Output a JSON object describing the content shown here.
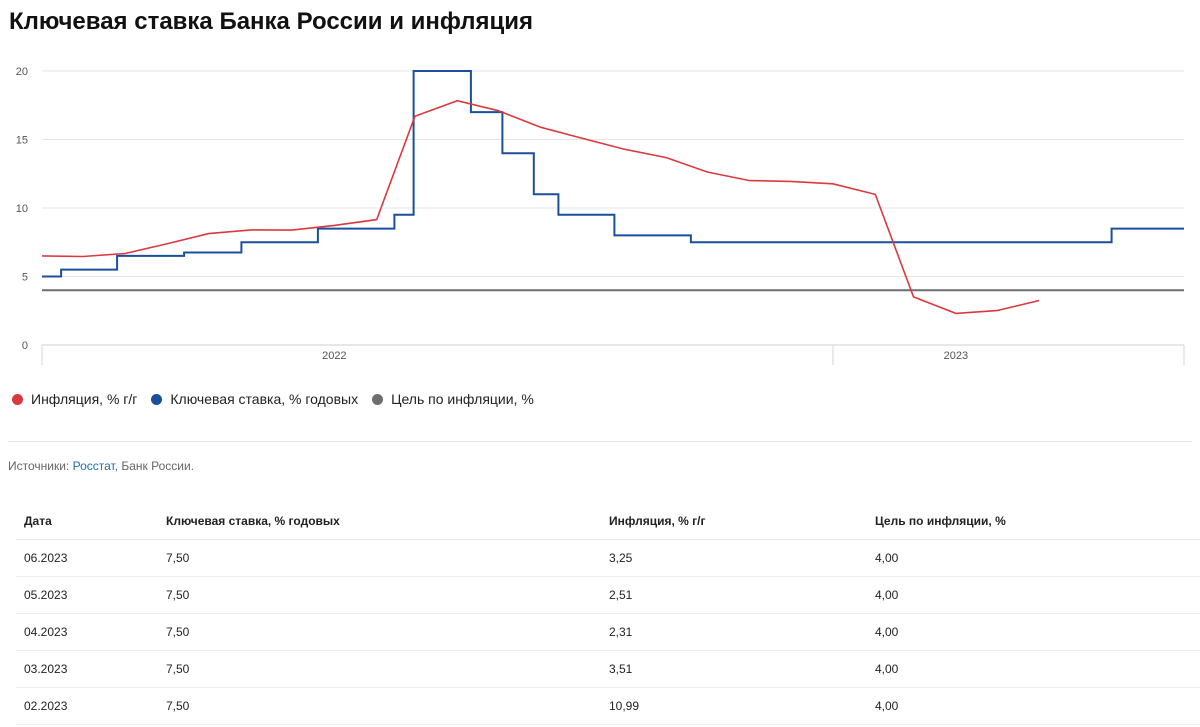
{
  "title": "Ключевая ставка Банка России и инфляция",
  "chart_data": {
    "type": "line",
    "x_ticks": [
      "2022",
      "2023"
    ],
    "ylim": [
      0,
      20
    ],
    "y_ticks": [
      0,
      5,
      10,
      15,
      20
    ],
    "grid": true,
    "legend_position": "bottom-left",
    "series": [
      {
        "name": "Инфляция, % г/г",
        "color": "#d93a3f",
        "kind": "line",
        "x": [
          "2021-06",
          "2021-07",
          "2021-08",
          "2021-09",
          "2021-10",
          "2021-11",
          "2021-12",
          "2022-01",
          "2022-02",
          "2022-03",
          "2022-04",
          "2022-05",
          "2022-06",
          "2022-07",
          "2022-08",
          "2022-09",
          "2022-10",
          "2022-11",
          "2022-12",
          "2023-01",
          "2023-02",
          "2023-03",
          "2023-04",
          "2023-05",
          "2023-06"
        ],
        "values": [
          6.5,
          6.46,
          6.68,
          7.4,
          8.13,
          8.4,
          8.39,
          8.73,
          9.15,
          16.69,
          17.83,
          17.1,
          15.9,
          15.1,
          14.3,
          13.68,
          12.63,
          12.0,
          11.94,
          11.77,
          10.99,
          3.51,
          2.31,
          2.51,
          3.25
        ]
      },
      {
        "name": "Ключевая ставка, % годовых",
        "color": "#1b4f9c",
        "kind": "step",
        "dates": [
          "2021-06-01",
          "2021-06-15",
          "2021-07-26",
          "2021-09-13",
          "2021-10-25",
          "2021-12-20",
          "2022-02-14",
          "2022-02-28",
          "2022-04-11",
          "2022-05-04",
          "2022-05-27",
          "2022-06-14",
          "2022-07-25",
          "2022-09-19",
          "2023-07-24",
          "2023-08-31"
        ],
        "values": [
          5.0,
          5.5,
          6.5,
          6.75,
          7.5,
          8.5,
          9.5,
          20,
          17,
          14,
          11,
          9.5,
          8,
          7.5,
          8.5,
          8.5
        ]
      },
      {
        "name": "Цель по инфляции, %",
        "color": "#6b6e73",
        "kind": "constant",
        "value": 4
      }
    ]
  },
  "sources": {
    "prefix": "Источники: ",
    "link": "Росстат",
    "rest": ", Банк России."
  },
  "table": {
    "headers": [
      "Дата",
      "Ключевая ставка, % годовых",
      "Инфляция, % г/г",
      "Цель по инфляции, %"
    ],
    "rows": [
      [
        "06.2023",
        "7,50",
        "3,25",
        "4,00"
      ],
      [
        "05.2023",
        "7,50",
        "2,51",
        "4,00"
      ],
      [
        "04.2023",
        "7,50",
        "2,31",
        "4,00"
      ],
      [
        "03.2023",
        "7,50",
        "3,51",
        "4,00"
      ],
      [
        "02.2023",
        "7,50",
        "10,99",
        "4,00"
      ]
    ]
  }
}
